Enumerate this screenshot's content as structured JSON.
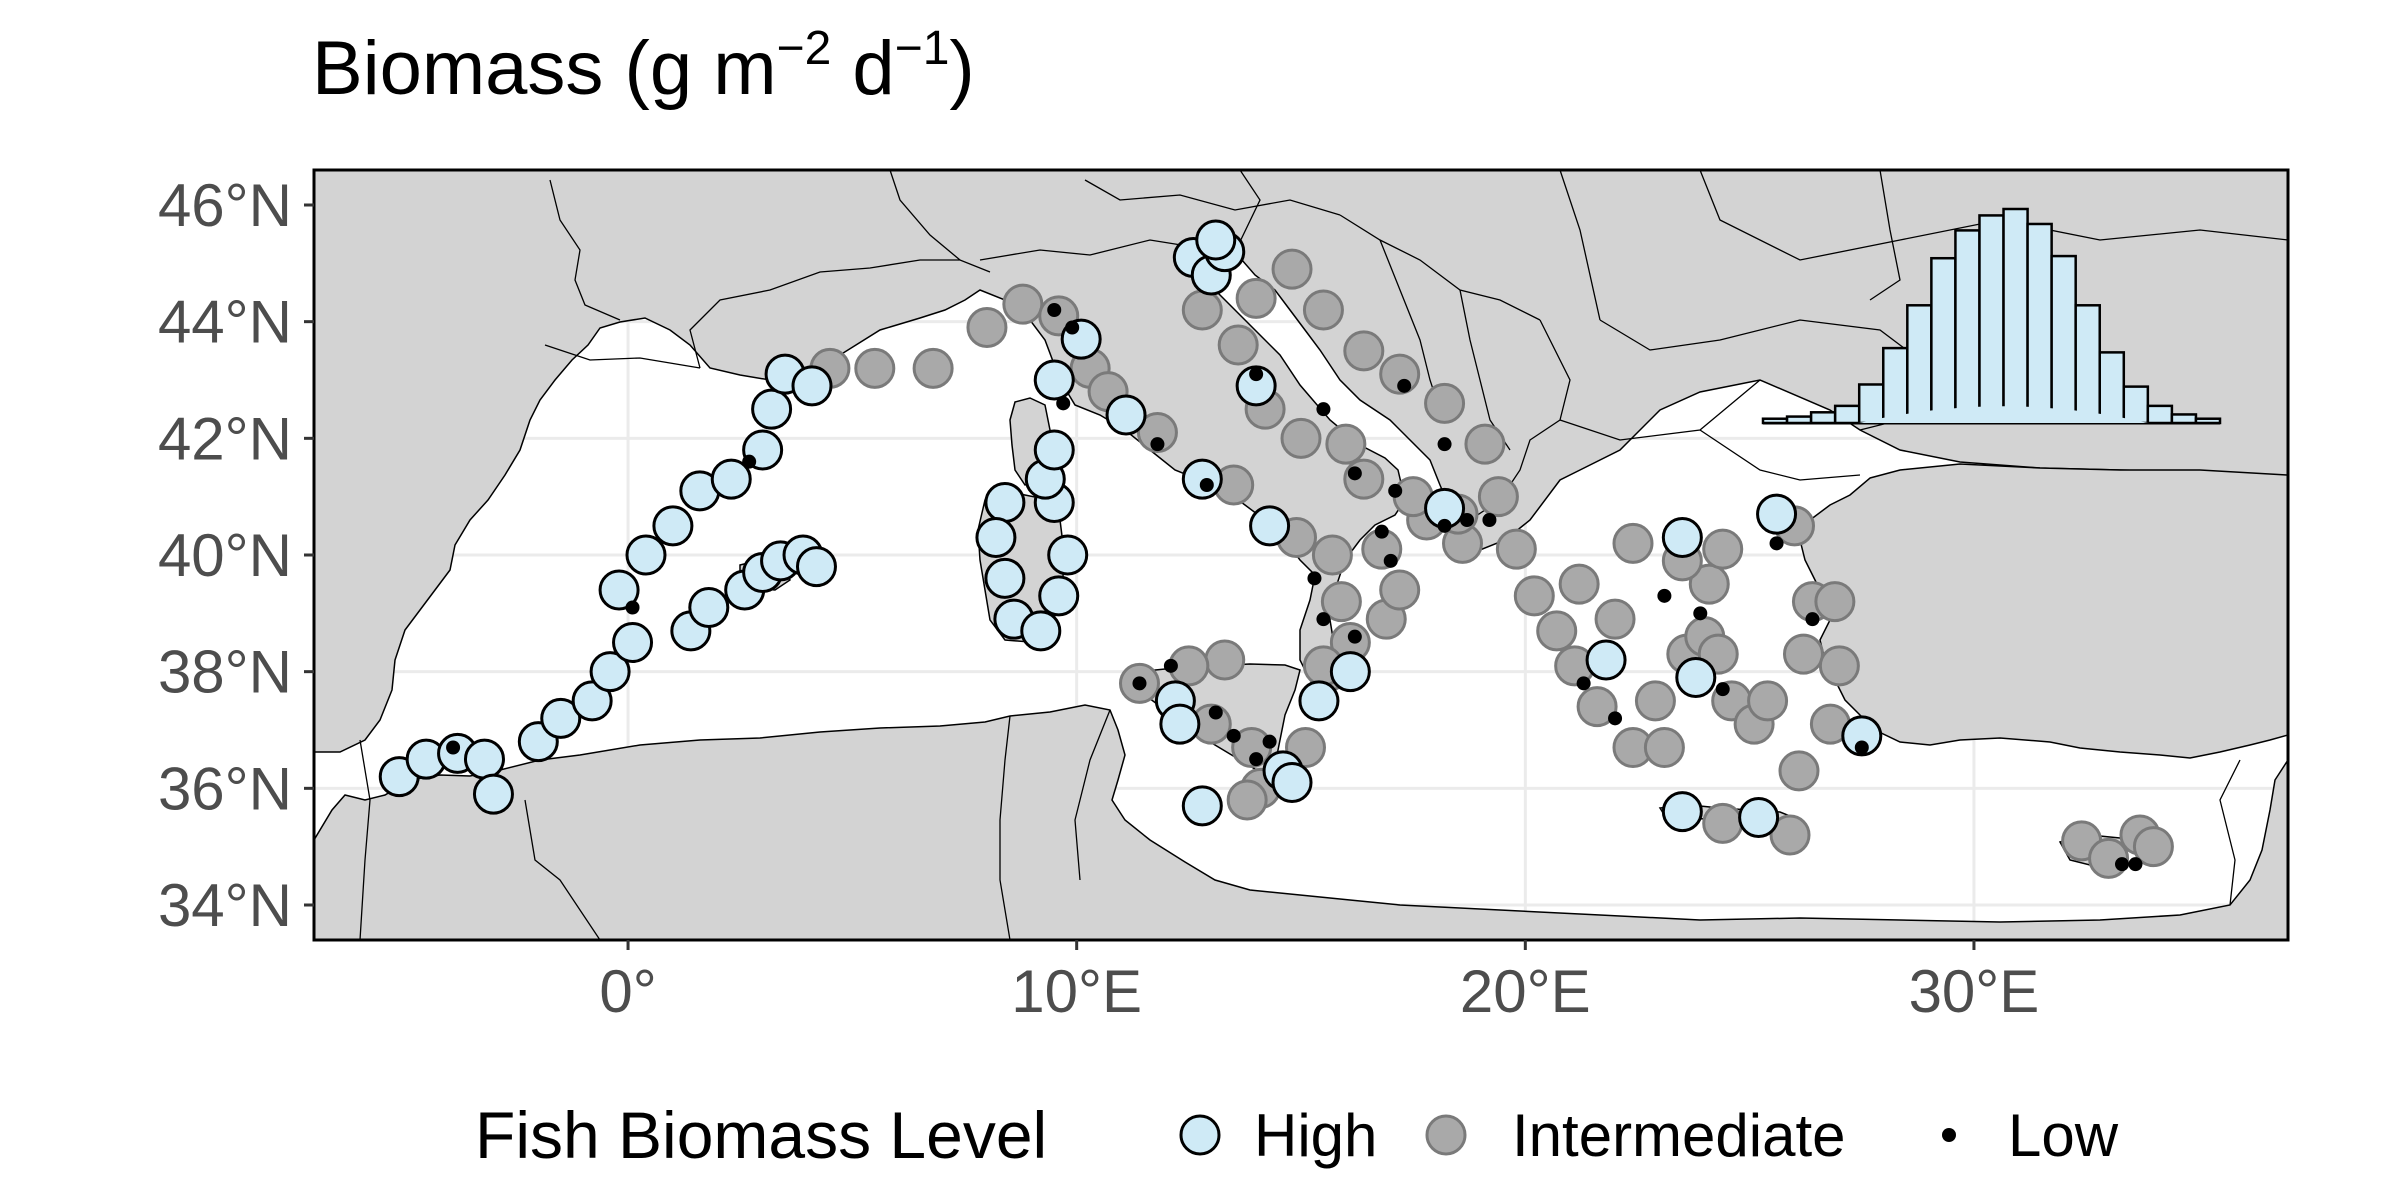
{
  "title": {
    "prefix": "Biomass (g m",
    "exp1": "−2",
    "mid": " d",
    "exp2": "−1",
    "suffix": ")"
  },
  "colors": {
    "land": "#d3d3d3",
    "sea": "#ffffff",
    "grid": "#ebebeb",
    "high": "#cfeaf6",
    "intermediate": "#a9a9a9",
    "intermediate_edge": "#7a7a7a",
    "low": "#000000"
  },
  "axes": {
    "x_ticks": [
      {
        "value": 0,
        "label": "0°"
      },
      {
        "value": 10,
        "label": "10°E"
      },
      {
        "value": 20,
        "label": "20°E"
      },
      {
        "value": 30,
        "label": "30°E"
      }
    ],
    "y_ticks": [
      {
        "value": 34,
        "label": "34°N"
      },
      {
        "value": 36,
        "label": "36°N"
      },
      {
        "value": 38,
        "label": "38°N"
      },
      {
        "value": 40,
        "label": "40°N"
      },
      {
        "value": 42,
        "label": "42°N"
      },
      {
        "value": 44,
        "label": "44°N"
      },
      {
        "value": 46,
        "label": "46°N"
      }
    ],
    "lon_range": [
      -7,
      37
    ],
    "lat_range": [
      33.4,
      46.6
    ],
    "grid": true
  },
  "legend": {
    "title": "Fish Biomass Level",
    "position": "bottom",
    "items": [
      {
        "key": "high",
        "label": "High"
      },
      {
        "key": "intermediate",
        "label": "Intermediate"
      },
      {
        "key": "low",
        "label": "Low"
      }
    ]
  },
  "inset_histogram": {
    "heights": [
      0.02,
      0.03,
      0.05,
      0.08,
      0.18,
      0.35,
      0.55,
      0.77,
      0.9,
      0.97,
      1.0,
      0.93,
      0.78,
      0.55,
      0.33,
      0.17,
      0.08,
      0.04,
      0.02
    ],
    "highlight_peak": 0.12
  },
  "chart_data": {
    "type": "scatter",
    "title": "Biomass (g m−2 d−1)",
    "xlabel": "",
    "ylabel": "",
    "xlim": [
      -7,
      37
    ],
    "ylim": [
      33.4,
      46.6
    ],
    "series": [
      {
        "name": "High",
        "points": [
          [
            -5.1,
            36.2
          ],
          [
            -4.5,
            36.5
          ],
          [
            -3.8,
            36.6
          ],
          [
            -3.2,
            36.5
          ],
          [
            -3.0,
            35.9
          ],
          [
            -2.0,
            36.8
          ],
          [
            -1.5,
            37.2
          ],
          [
            -0.8,
            37.5
          ],
          [
            -0.4,
            38.0
          ],
          [
            0.1,
            38.5
          ],
          [
            -0.2,
            39.4
          ],
          [
            0.4,
            40.0
          ],
          [
            1.0,
            40.5
          ],
          [
            1.6,
            41.1
          ],
          [
            2.3,
            41.3
          ],
          [
            3.0,
            41.8
          ],
          [
            3.2,
            42.5
          ],
          [
            3.5,
            43.1
          ],
          [
            4.1,
            42.9
          ],
          [
            1.4,
            38.7
          ],
          [
            1.8,
            39.1
          ],
          [
            2.6,
            39.4
          ],
          [
            3.0,
            39.7
          ],
          [
            3.4,
            39.9
          ],
          [
            3.9,
            40.0
          ],
          [
            4.2,
            39.8
          ],
          [
            8.4,
            40.9
          ],
          [
            8.2,
            40.3
          ],
          [
            8.4,
            39.6
          ],
          [
            8.6,
            38.9
          ],
          [
            9.2,
            38.7
          ],
          [
            9.6,
            39.3
          ],
          [
            9.8,
            40.0
          ],
          [
            9.5,
            40.9
          ],
          [
            9.3,
            41.3
          ],
          [
            9.5,
            41.8
          ],
          [
            9.5,
            43.0
          ],
          [
            10.1,
            43.7
          ],
          [
            11.1,
            42.4
          ],
          [
            12.8,
            41.3
          ],
          [
            14.3,
            40.5
          ],
          [
            16.1,
            38.0
          ],
          [
            12.2,
            37.5
          ],
          [
            12.3,
            37.1
          ],
          [
            12.8,
            35.7
          ],
          [
            14.6,
            36.3
          ],
          [
            14.8,
            36.1
          ],
          [
            15.4,
            37.5
          ],
          [
            12.6,
            45.1
          ],
          [
            13.0,
            44.8
          ],
          [
            13.3,
            45.2
          ],
          [
            13.1,
            45.4
          ],
          [
            14.0,
            42.9
          ],
          [
            18.2,
            40.8
          ],
          [
            21.8,
            38.2
          ],
          [
            23.5,
            40.3
          ],
          [
            23.8,
            37.9
          ],
          [
            23.5,
            35.6
          ],
          [
            25.2,
            35.5
          ],
          [
            25.6,
            40.7
          ],
          [
            27.5,
            36.9
          ]
        ]
      },
      {
        "name": "Intermediate",
        "points": [
          [
            4.5,
            43.2
          ],
          [
            5.5,
            43.2
          ],
          [
            6.8,
            43.2
          ],
          [
            8.0,
            43.9
          ],
          [
            8.8,
            44.3
          ],
          [
            9.6,
            44.1
          ],
          [
            10.3,
            43.2
          ],
          [
            10.7,
            42.8
          ],
          [
            11.8,
            42.1
          ],
          [
            13.5,
            41.2
          ],
          [
            14.9,
            40.3
          ],
          [
            15.7,
            40.0
          ],
          [
            15.9,
            39.2
          ],
          [
            16.1,
            38.5
          ],
          [
            15.6,
            38.0
          ],
          [
            13.3,
            38.2
          ],
          [
            12.5,
            38.1
          ],
          [
            11.4,
            37.8
          ],
          [
            13.0,
            37.1
          ],
          [
            13.9,
            36.7
          ],
          [
            14.1,
            36.0
          ],
          [
            13.8,
            35.8
          ],
          [
            15.1,
            36.7
          ],
          [
            15.5,
            38.1
          ],
          [
            16.9,
            38.9
          ],
          [
            17.2,
            39.4
          ],
          [
            16.8,
            40.1
          ],
          [
            17.8,
            40.6
          ],
          [
            18.6,
            40.2
          ],
          [
            18.5,
            40.7
          ],
          [
            17.5,
            41.0
          ],
          [
            16.4,
            41.3
          ],
          [
            16.0,
            41.9
          ],
          [
            15.0,
            42.0
          ],
          [
            14.2,
            42.5
          ],
          [
            13.6,
            43.6
          ],
          [
            12.8,
            44.2
          ],
          [
            14.0,
            44.4
          ],
          [
            14.8,
            44.9
          ],
          [
            15.5,
            44.2
          ],
          [
            16.4,
            43.5
          ],
          [
            17.2,
            43.1
          ],
          [
            18.2,
            42.6
          ],
          [
            19.1,
            41.9
          ],
          [
            19.4,
            41.0
          ],
          [
            19.8,
            40.1
          ],
          [
            20.2,
            39.3
          ],
          [
            20.7,
            38.7
          ],
          [
            21.1,
            38.1
          ],
          [
            21.6,
            37.4
          ],
          [
            22.4,
            36.7
          ],
          [
            23.1,
            36.7
          ],
          [
            22.9,
            37.5
          ],
          [
            23.6,
            38.3
          ],
          [
            24.0,
            38.6
          ],
          [
            24.3,
            38.3
          ],
          [
            24.6,
            37.5
          ],
          [
            25.1,
            37.1
          ],
          [
            25.4,
            37.5
          ],
          [
            26.2,
            38.3
          ],
          [
            26.4,
            39.2
          ],
          [
            24.1,
            39.5
          ],
          [
            23.5,
            39.9
          ],
          [
            24.4,
            40.1
          ],
          [
            26.0,
            40.5
          ],
          [
            26.9,
            39.2
          ],
          [
            27.0,
            38.1
          ],
          [
            26.8,
            37.1
          ],
          [
            26.1,
            36.3
          ],
          [
            24.4,
            35.4
          ],
          [
            25.9,
            35.2
          ],
          [
            22.0,
            38.9
          ],
          [
            21.2,
            39.5
          ],
          [
            22.4,
            40.2
          ],
          [
            32.4,
            35.1
          ],
          [
            33.0,
            34.8
          ],
          [
            33.7,
            35.2
          ],
          [
            34.0,
            35.0
          ]
        ]
      },
      {
        "name": "Low",
        "points": [
          [
            -3.9,
            36.7
          ],
          [
            0.1,
            39.1
          ],
          [
            2.7,
            41.6
          ],
          [
            9.9,
            43.9
          ],
          [
            9.5,
            44.2
          ],
          [
            9.7,
            42.6
          ],
          [
            11.8,
            41.9
          ],
          [
            12.9,
            41.2
          ],
          [
            15.3,
            39.6
          ],
          [
            15.5,
            38.9
          ],
          [
            11.4,
            37.8
          ],
          [
            12.1,
            38.1
          ],
          [
            13.1,
            37.3
          ],
          [
            13.5,
            36.9
          ],
          [
            14.0,
            36.5
          ],
          [
            14.3,
            36.8
          ],
          [
            16.2,
            38.6
          ],
          [
            17.0,
            39.9
          ],
          [
            16.8,
            40.4
          ],
          [
            18.2,
            40.5
          ],
          [
            18.7,
            40.6
          ],
          [
            16.2,
            41.4
          ],
          [
            17.1,
            41.1
          ],
          [
            14.0,
            43.1
          ],
          [
            15.5,
            42.5
          ],
          [
            17.3,
            42.9
          ],
          [
            18.2,
            41.9
          ],
          [
            19.2,
            40.6
          ],
          [
            21.3,
            37.8
          ],
          [
            22.0,
            37.2
          ],
          [
            23.1,
            39.3
          ],
          [
            23.9,
            39.0
          ],
          [
            24.4,
            37.7
          ],
          [
            25.6,
            40.2
          ],
          [
            26.4,
            38.9
          ],
          [
            27.5,
            36.7
          ],
          [
            33.3,
            34.7
          ],
          [
            33.6,
            34.7
          ]
        ]
      }
    ]
  }
}
